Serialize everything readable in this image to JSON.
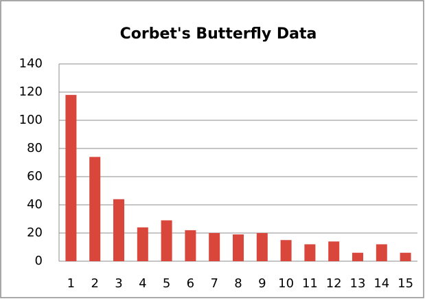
{
  "chart_data": {
    "type": "bar",
    "title": "Corbet's Butterfly Data",
    "categories": [
      "1",
      "2",
      "3",
      "4",
      "5",
      "6",
      "7",
      "8",
      "9",
      "10",
      "11",
      "12",
      "13",
      "14",
      "15"
    ],
    "values": [
      118,
      74,
      44,
      24,
      29,
      22,
      20,
      19,
      20,
      15,
      12,
      14,
      6,
      12,
      6
    ],
    "color": "#d9473c",
    "ylim": [
      0,
      140
    ],
    "yticks": [
      0,
      20,
      40,
      60,
      80,
      100,
      120,
      140
    ],
    "grid": true
  }
}
